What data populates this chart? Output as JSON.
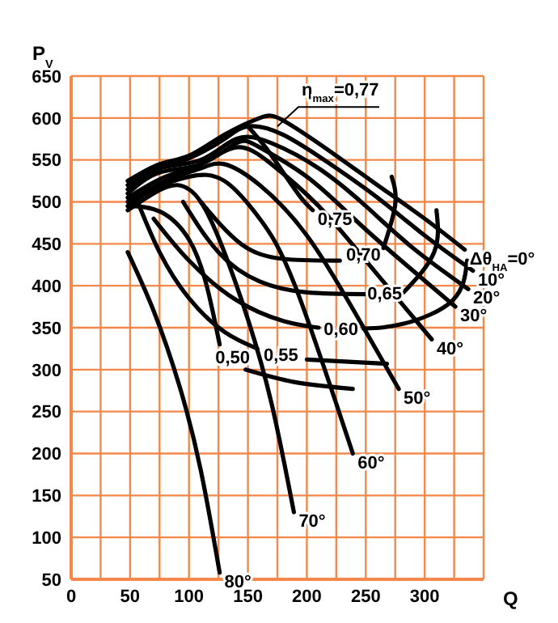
{
  "chart_data": {
    "type": "line",
    "xlabel": "Q",
    "ylabel": "P$_{V}$",
    "xlim": [
      0,
      350
    ],
    "ylim": [
      50,
      650
    ],
    "xticks": [
      0,
      {
        "value": 25,
        "label": null
      },
      50,
      {
        "value": 75,
        "label": null
      },
      100,
      {
        "value": 125,
        "label": null
      },
      150,
      {
        "value": 175,
        "label": null
      },
      200,
      {
        "value": 225,
        "label": null
      },
      250,
      {
        "value": 275,
        "label": null
      },
      300,
      {
        "value": 325,
        "label": null
      },
      {
        "value": 350,
        "label": null
      }
    ],
    "yticks": [
      50,
      100,
      150,
      200,
      250,
      300,
      350,
      400,
      450,
      500,
      550,
      600,
      650
    ],
    "grid": true,
    "annotations": [
      {
        "text": "η$_{max}$=0,77",
        "x": 175,
        "y": 590
      }
    ],
    "series": [
      {
        "name": "Δθ$_{НА}$=0°",
        "color": "#000000",
        "x": [
          48,
          75,
          100,
          130,
          160,
          180,
          220,
          260,
          300,
          334
        ],
        "values": [
          525,
          545,
          555,
          580,
          600,
          597,
          560,
          520,
          480,
          443
        ]
      },
      {
        "name": "10°",
        "color": "#000000",
        "x": [
          48,
          75,
          100,
          130,
          150,
          180,
          220,
          260,
          300,
          341
        ],
        "values": [
          520,
          540,
          552,
          575,
          590,
          580,
          545,
          505,
          460,
          418
        ]
      },
      {
        "name": "20°",
        "color": "#000000",
        "x": [
          48,
          75,
          110,
          140,
          170,
          210,
          250,
          290,
          337
        ],
        "values": [
          515,
          540,
          550,
          575,
          570,
          540,
          495,
          445,
          396
        ]
      },
      {
        "name": "30°",
        "color": "#000000",
        "x": [
          48,
          75,
          110,
          140,
          160,
          200,
          240,
          280,
          326
        ],
        "values": [
          510,
          535,
          545,
          570,
          565,
          530,
          480,
          430,
          375
        ]
      },
      {
        "name": "40°",
        "color": "#000000",
        "x": [
          48,
          80,
          110,
          140,
          170,
          210,
          250,
          306
        ],
        "values": [
          505,
          530,
          545,
          565,
          545,
          495,
          430,
          336
        ]
      },
      {
        "name": "50°",
        "color": "#000000",
        "x": [
          48,
          80,
          110,
          130,
          160,
          200,
          240,
          278
        ],
        "values": [
          500,
          525,
          540,
          545,
          520,
          460,
          370,
          277
        ]
      },
      {
        "name": "60°",
        "color": "#000000",
        "x": [
          48,
          70,
          100,
          130,
          160,
          190,
          239
        ],
        "values": [
          495,
          515,
          530,
          525,
          480,
          400,
          200
        ]
      },
      {
        "name": "70°",
        "color": "#000000",
        "x": [
          48,
          70,
          90,
          110,
          130,
          150,
          170,
          189
        ],
        "values": [
          490,
          510,
          520,
          500,
          440,
          360,
          260,
          130
        ]
      },
      {
        "name": "80°",
        "color": "#000000",
        "x": [
          48,
          70,
          92,
          110,
          126
        ],
        "values": [
          440,
          370,
          280,
          180,
          58
        ]
      },
      {
        "name": "0,50",
        "color": "#000000",
        "x": [
          49,
          76,
          100,
          115,
          126,
          137,
          148,
          190,
          239
        ],
        "values": [
          495,
          488,
          455,
          400,
          330,
          null,
          300,
          285,
          277
        ]
      },
      {
        "name": "0,55",
        "color": "#000000",
        "x": [
          55,
          75,
          100,
          130,
          158,
          178,
          200,
          268
        ],
        "values": [
          505,
          440,
          385,
          345,
          325,
          null,
          312,
          307
        ]
      },
      {
        "name": "0,60",
        "color": "#000000",
        "x": [
          70,
          100,
          140,
          180,
          210,
          229,
          248,
          283,
          324,
          336
        ],
        "values": [
          480,
          430,
          383,
          358,
          350,
          null,
          349,
          355,
          383,
          430
        ]
      },
      {
        "name": "0,65",
        "color": "#000000",
        "x": [
          95,
          125,
          160,
          200,
          250,
          266,
          282,
          308,
          310
        ],
        "values": [
          500,
          440,
          405,
          392,
          390,
          null,
          392,
          440,
          490
        ]
      },
      {
        "name": "0,70",
        "color": "#000000",
        "x": [
          110,
          144,
          180,
          228,
          248,
          265,
          275,
          272
        ],
        "values": [
          500,
          450,
          432,
          430,
          null,
          445,
          497,
          530
        ]
      },
      {
        "name": "0,75",
        "color": "#000000",
        "x": [
          150,
          165,
          180,
          195,
          205
        ],
        "values": [
          590,
          565,
          535,
          505,
          490
        ]
      }
    ]
  }
}
